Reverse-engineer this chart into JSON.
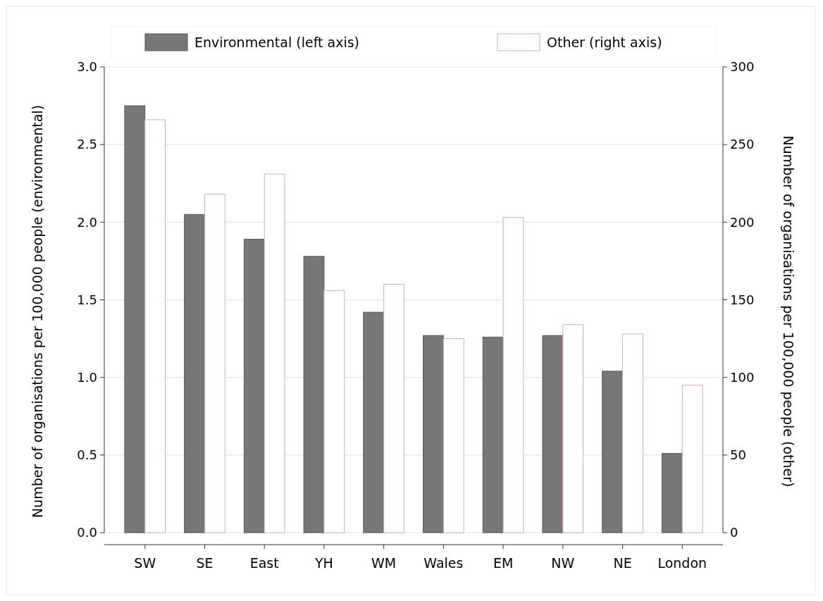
{
  "chart_data": {
    "type": "bar",
    "ylabel": "Number of organisations per 100,000 people (environmental)",
    "y2label": "Number of organisations per 100,000 people (other)",
    "categories": [
      "SW",
      "SE",
      "East",
      "YH",
      "WM",
      "Wales",
      "EM",
      "NW",
      "NE",
      "London"
    ],
    "series": [
      {
        "name": "Environmental (left axis)",
        "color": "#777777",
        "values": [
          2.75,
          2.05,
          1.89,
          1.78,
          1.42,
          1.27,
          1.26,
          1.27,
          1.04,
          0.51
        ]
      },
      {
        "name": "Other (right axis)",
        "color": "#ffffff",
        "axis": "y2",
        "values": [
          266,
          218,
          231,
          156,
          160,
          125,
          203,
          134,
          128,
          95
        ]
      }
    ],
    "ylim": [
      0,
      3.0
    ],
    "yticks": [
      {
        "value": 0,
        "label": "0.0"
      },
      {
        "value": 0.5,
        "label": "0.5"
      },
      {
        "value": 1,
        "label": "1.0"
      },
      {
        "value": 1.5,
        "label": "1.5"
      },
      {
        "value": 2,
        "label": "2.0"
      },
      {
        "value": 2.5,
        "label": "2.5"
      },
      {
        "value": 3,
        "label": "3.0"
      }
    ],
    "y2lim": [
      0,
      300
    ],
    "y2ticks": [
      0,
      50,
      100,
      150,
      200,
      250,
      300
    ],
    "grid": "y",
    "legend": "top"
  }
}
